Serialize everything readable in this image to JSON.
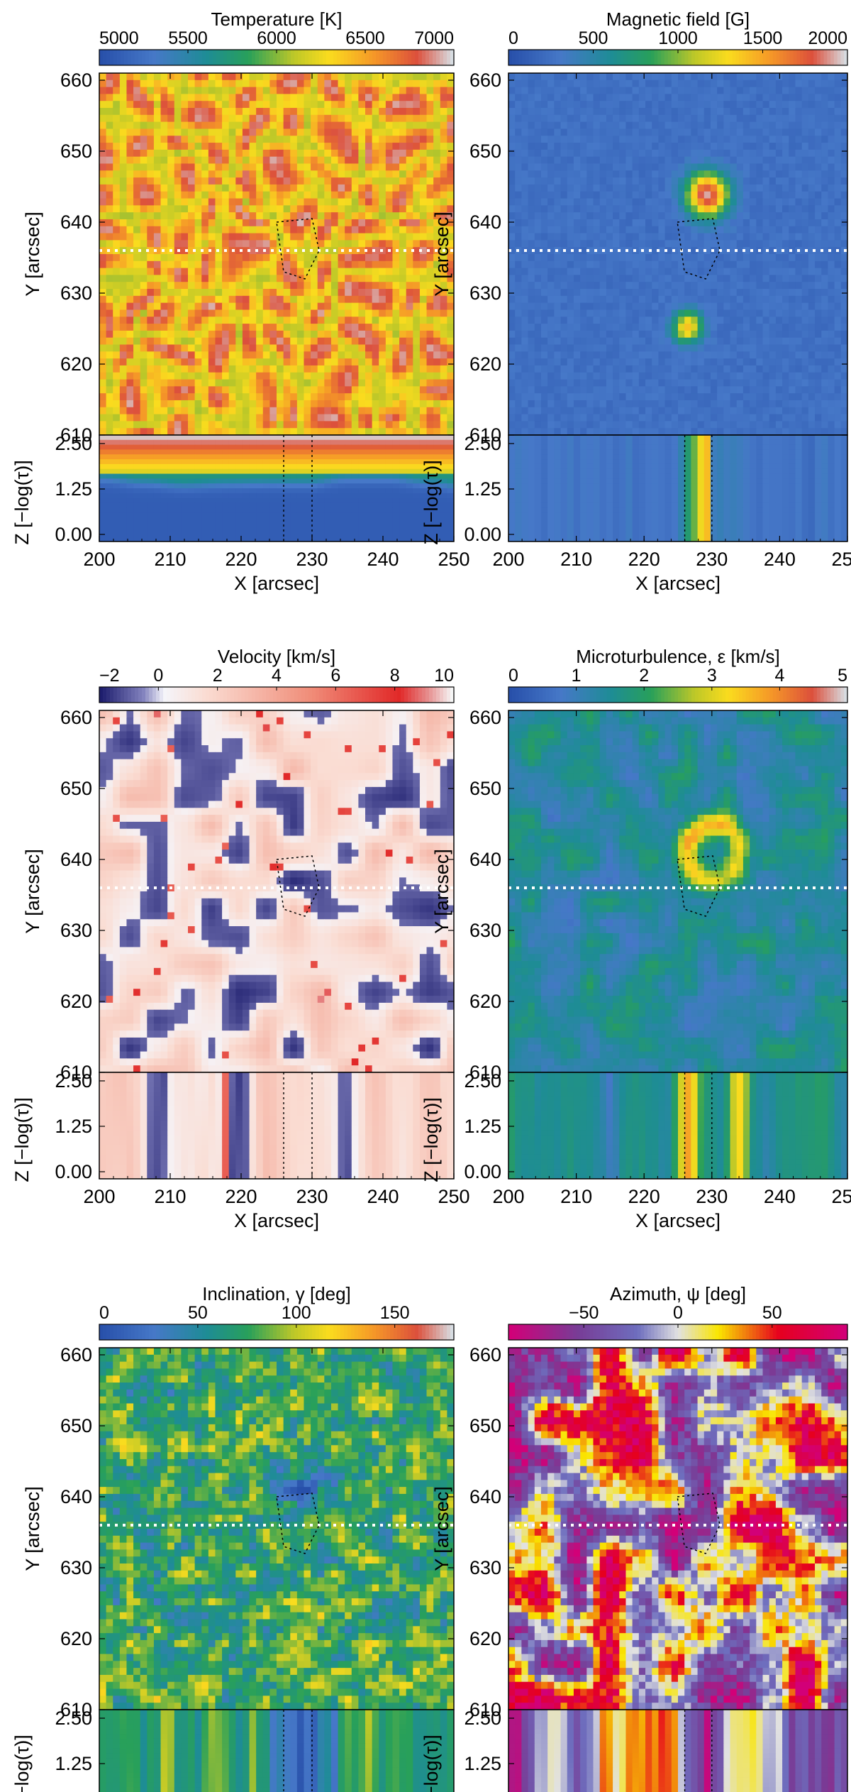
{
  "figure": {
    "description_type": "multi-panel solar inversion maps",
    "panels": [
      {
        "id": "temperature",
        "cb_label": "Temperature [K]",
        "cb_ticks": [
          "5000",
          "5500",
          "6000",
          "6500",
          "7000"
        ],
        "colormap": "rainbow"
      },
      {
        "id": "magnetic",
        "cb_label": "Magnetic field [G]",
        "cb_ticks": [
          "0",
          "500",
          "1000",
          "1500",
          "2000"
        ],
        "colormap": "rainbow"
      },
      {
        "id": "velocity",
        "cb_label": "Velocity [km/s]",
        "cb_ticks": [
          "−2",
          "0",
          "2",
          "4",
          "6",
          "8",
          "10"
        ],
        "colormap": "diverging"
      },
      {
        "id": "microturb",
        "cb_label": "Microturbulence, ε [km/s]",
        "cb_ticks": [
          "0",
          "1",
          "2",
          "3",
          "4",
          "5"
        ],
        "colormap": "rainbow"
      },
      {
        "id": "inclination",
        "cb_label": "Inclination, γ [deg]",
        "cb_ticks": [
          "0",
          "50",
          "100",
          "150"
        ],
        "colormap": "rainbow"
      },
      {
        "id": "azimuth",
        "cb_label": "Azimuth, ψ [deg]",
        "cb_ticks": [
          "−50",
          "0",
          "50"
        ],
        "colormap": "cyclic"
      }
    ]
  },
  "axes": {
    "xlabel": "X [arcsec]",
    "ylabel_map": "Y [arcsec]",
    "ylabel_section": "Z [−log(τ)]",
    "x_ticks": [
      "200",
      "210",
      "220",
      "230",
      "240",
      "250"
    ],
    "y_ticks": [
      "660",
      "650",
      "640",
      "630",
      "620",
      "610"
    ],
    "z_ticks": [
      "2.50",
      "1.25",
      "0.00"
    ]
  },
  "chart_data": [
    {
      "type": "heatmap",
      "title": "Temperature [K]",
      "xlabel": "X [arcsec]",
      "ylabel": "Y [arcsec]",
      "xlim": [
        200,
        250
      ],
      "ylim": [
        610,
        661
      ],
      "zlim": [
        5000,
        7000
      ],
      "cross_section_y": 636,
      "section_zlim": [
        0,
        2.5
      ]
    },
    {
      "type": "heatmap",
      "title": "Magnetic field [G]",
      "xlabel": "X [arcsec]",
      "ylabel": "Y [arcsec]",
      "xlim": [
        200,
        250
      ],
      "ylim": [
        610,
        661
      ],
      "zlim": [
        0,
        2000
      ],
      "cross_section_y": 636,
      "section_zlim": [
        0,
        2.5
      ]
    },
    {
      "type": "heatmap",
      "title": "Velocity [km/s]",
      "xlabel": "X [arcsec]",
      "ylabel": "Y [arcsec]",
      "xlim": [
        200,
        250
      ],
      "ylim": [
        610,
        661
      ],
      "zlim": [
        -2,
        10
      ],
      "cross_section_y": 636,
      "section_zlim": [
        0,
        2.5
      ]
    },
    {
      "type": "heatmap",
      "title": "Microturbulence, ε [km/s]",
      "xlabel": "X [arcsec]",
      "ylabel": "Y [arcsec]",
      "xlim": [
        200,
        250
      ],
      "ylim": [
        610,
        661
      ],
      "zlim": [
        0,
        5
      ],
      "cross_section_y": 636,
      "section_zlim": [
        0,
        2.5
      ]
    },
    {
      "type": "heatmap",
      "title": "Inclination, γ [deg]",
      "xlabel": "X [arcsec]",
      "ylabel": "Y [arcsec]",
      "xlim": [
        200,
        250
      ],
      "ylim": [
        610,
        661
      ],
      "zlim": [
        0,
        180
      ],
      "cross_section_y": 636,
      "section_zlim": [
        0,
        2.5
      ]
    },
    {
      "type": "heatmap",
      "title": "Azimuth, ψ [deg]",
      "xlabel": "X [arcsec]",
      "ylabel": "Y [arcsec]",
      "xlim": [
        200,
        250
      ],
      "ylim": [
        610,
        661
      ],
      "zlim": [
        -90,
        90
      ],
      "cross_section_y": 636,
      "section_zlim": [
        0,
        2.5
      ]
    }
  ]
}
